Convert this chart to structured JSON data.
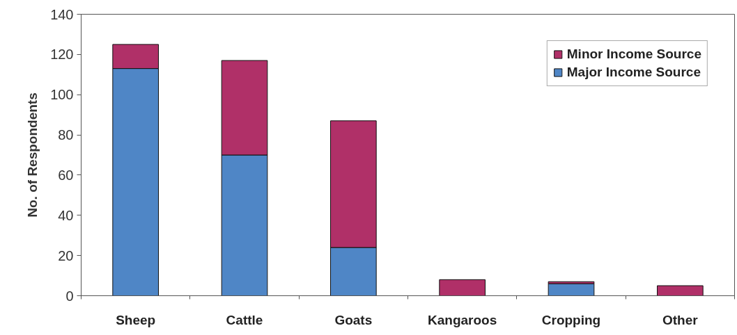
{
  "chart_data": {
    "type": "bar",
    "ylabel": "No. of Respondents",
    "categories": [
      "Sheep",
      "Cattle",
      "Goats",
      "Kangaroos",
      "Cropping",
      "Other"
    ],
    "stacked": true,
    "series": [
      {
        "name": "Major Income Source",
        "color": "#4f86c6",
        "values": [
          113,
          70,
          24,
          0,
          6,
          0
        ]
      },
      {
        "name": "Minor Income Source",
        "color": "#b03068",
        "values": [
          12,
          47,
          63,
          8,
          1,
          5
        ]
      }
    ],
    "ylim": [
      0,
      140
    ],
    "yticks": [
      0,
      20,
      40,
      60,
      80,
      100,
      120,
      140
    ],
    "legend": "top right",
    "grid": false
  }
}
